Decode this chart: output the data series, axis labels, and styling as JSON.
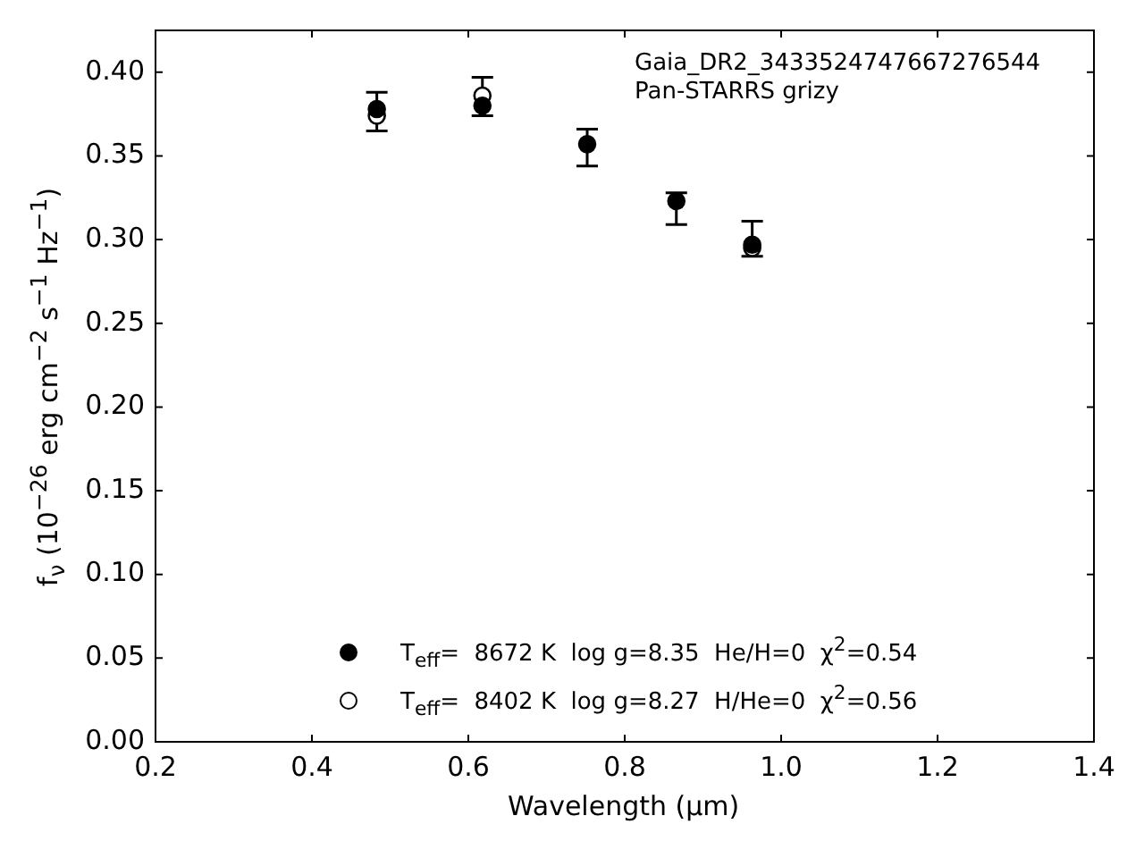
{
  "chart_data": {
    "type": "scatter",
    "xlabel": "Wavelength (μm)",
    "ylabel": "f$_{ν}$ (10$^{−26}$ erg cm$^{−2}$ s$^{−1}$ Hz$^{−1}$)",
    "annotations": [
      "Gaia_DR2_3433524747667276544",
      "Pan-STARRS grizy"
    ],
    "x": [
      0.483,
      0.618,
      0.752,
      0.866,
      0.963
    ],
    "series": [
      {
        "name": "T$_{eff}$=  8672 K  log g=8.35  He/H=0  χ$^{2}$=0.54",
        "color": "#000000",
        "marker": "circle",
        "values": [
          0.378,
          0.38,
          0.357,
          0.323,
          0.297
        ],
        "errors": [
          [
            0.365,
            0.388
          ],
          [
            0.374,
            0.397
          ],
          [
            0.344,
            0.366
          ],
          [
            0.309,
            0.328
          ],
          [
            0.29,
            0.311
          ]
        ]
      },
      {
        "name": "T$_{eff}$=  8402 K  log g=8.27  H/He=0  χ$^{2}$=0.56",
        "color": "#ffffff",
        "marker": "circle",
        "values": [
          0.374,
          0.386,
          null,
          null,
          0.295
        ]
      }
    ],
    "xlim": [
      0.2,
      1.4
    ],
    "xticks": [
      0.2,
      0.4,
      0.6,
      0.8,
      {
        "value": 1,
        "label": "1.0"
      },
      1.2,
      1.4
    ],
    "ylim": [
      0,
      0.425
    ],
    "yticks": [
      {
        "value": 0,
        "label": "0.00"
      },
      0.05,
      {
        "value": 0.1,
        "label": "0.10"
      },
      0.15,
      {
        "value": 0.2,
        "label": "0.20"
      },
      0.25,
      {
        "value": 0.3,
        "label": "0.30"
      },
      0.35,
      {
        "value": 0.4,
        "label": "0.40"
      }
    ],
    "grid": false,
    "legend": "bottom"
  }
}
